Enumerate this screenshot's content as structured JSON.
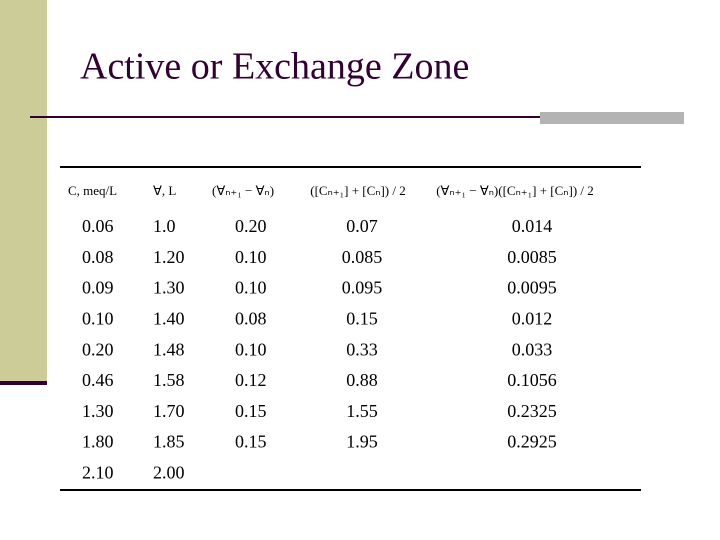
{
  "title": "Active or Exchange Zone",
  "table": {
    "header": [
      "C, meq/L",
      "∀, L",
      "(∀ₙ₊₁ − ∀ₙ)",
      "([Cₙ₊₁] + [Cₙ]) / 2",
      "(∀ₙ₊₁ − ∀ₙ)([Cₙ₊₁] + [Cₙ]) / 2"
    ],
    "rows": [
      [
        "0.06",
        "1.0",
        "0.20",
        "0.07",
        "0.014"
      ],
      [
        "0.08",
        "1.20",
        "0.10",
        "0.085",
        "0.0085"
      ],
      [
        "0.09",
        "1.30",
        "0.10",
        "0.095",
        "0.0095"
      ],
      [
        "0.10",
        "1.40",
        "0.08",
        "0.15",
        "0.012"
      ],
      [
        "0.20",
        "1.48",
        "0.10",
        "0.33",
        "0.033"
      ],
      [
        "0.46",
        "1.58",
        "0.12",
        "0.88",
        "0.1056"
      ],
      [
        "1.30",
        "1.70",
        "0.15",
        "1.55",
        "0.2325"
      ],
      [
        "1.80",
        "1.85",
        "0.15",
        "1.95",
        "0.2925"
      ],
      [
        "2.10",
        "2.00"
      ]
    ]
  }
}
